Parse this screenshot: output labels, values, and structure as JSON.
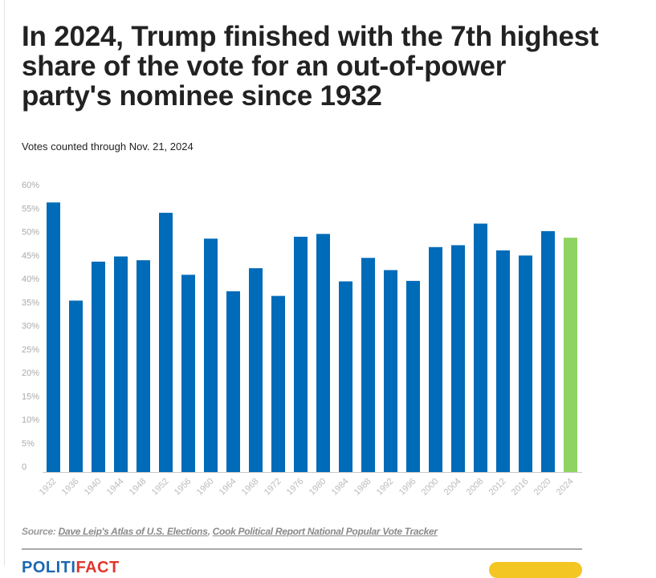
{
  "header": {
    "title": "In 2024, Trump finished with the 7th highest share of the vote for an out-of-power party's nominee since 1932",
    "subtitle": "Votes counted through Nov. 21, 2024"
  },
  "footer": {
    "source_label": "Source:",
    "source_links": [
      "Dave Leip's Atlas of U.S. Elections",
      "Cook Political Report National Popular Vote Tracker"
    ],
    "separator": ", ",
    "logo_part1": "POLITI",
    "logo_part2": "FACT"
  },
  "colors": {
    "bar": "#006bb8",
    "highlight": "#8fd462",
    "axis": "#c8c8c8"
  },
  "chart_data": {
    "type": "bar",
    "title": "In 2024, Trump finished with the 7th highest share of the vote for an out-of-power party's nominee since 1932",
    "subtitle": "Votes counted through Nov. 21, 2024",
    "xlabel": "",
    "ylabel": "",
    "categories": [
      "1932",
      "1936",
      "1940",
      "1944",
      "1948",
      "1952",
      "1956",
      "1960",
      "1964",
      "1968",
      "1972",
      "1976",
      "1980",
      "1984",
      "1988",
      "1992",
      "1996",
      "2000",
      "2004",
      "2008",
      "2012",
      "2016",
      "2020",
      "2024"
    ],
    "values": [
      57.4,
      36.5,
      44.8,
      45.9,
      45.1,
      55.2,
      42.0,
      49.7,
      38.5,
      43.4,
      37.5,
      50.1,
      50.7,
      40.6,
      45.6,
      43.0,
      40.7,
      47.9,
      48.3,
      52.9,
      47.2,
      46.1,
      51.3,
      49.9
    ],
    "highlight_category": "2024",
    "ylim": [
      0,
      60
    ],
    "yticks": [
      0,
      5,
      10,
      15,
      20,
      25,
      30,
      35,
      40,
      45,
      50,
      55,
      60
    ],
    "ytick_labels": [
      "0",
      "5%",
      "10%",
      "15%",
      "20%",
      "25%",
      "30%",
      "35%",
      "40%",
      "45%",
      "50%",
      "55%",
      "60%"
    ],
    "grid": false,
    "legend": "none",
    "unit": "%"
  }
}
